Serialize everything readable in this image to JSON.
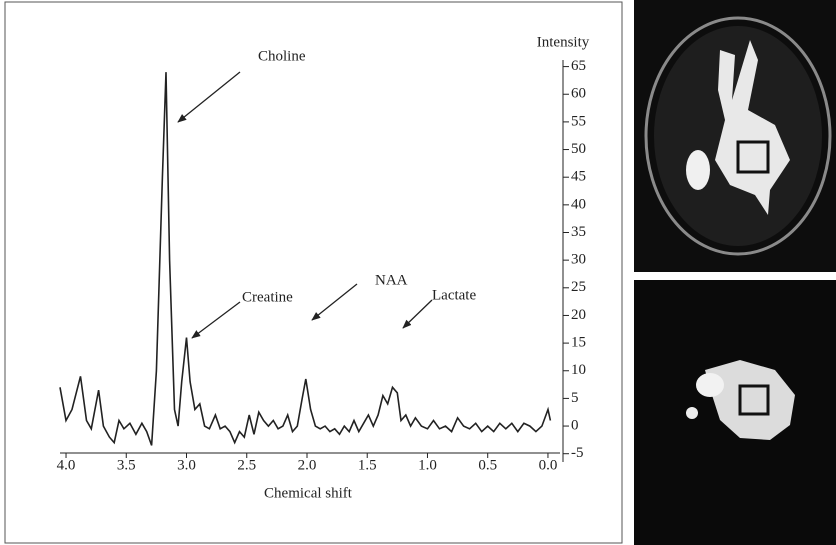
{
  "chart_data": {
    "type": "line",
    "x_label": "Chemical shift",
    "y_label": "Intensity",
    "annotations": [
      "Choline",
      "Creatine",
      "NAA",
      "Lactate"
    ],
    "color": "#222222",
    "x": [
      4.05,
      4.0,
      3.95,
      3.88,
      3.83,
      3.79,
      3.73,
      3.69,
      3.64,
      3.6,
      3.56,
      3.52,
      3.47,
      3.42,
      3.37,
      3.33,
      3.29,
      3.25,
      3.2,
      3.17,
      3.14,
      3.1,
      3.07,
      3.04,
      3.0,
      2.97,
      2.93,
      2.89,
      2.85,
      2.81,
      2.76,
      2.72,
      2.68,
      2.64,
      2.6,
      2.56,
      2.52,
      2.48,
      2.44,
      2.4,
      2.36,
      2.32,
      2.28,
      2.24,
      2.2,
      2.16,
      2.12,
      2.08,
      2.04,
      2.01,
      1.97,
      1.93,
      1.89,
      1.85,
      1.81,
      1.77,
      1.73,
      1.69,
      1.65,
      1.61,
      1.57,
      1.53,
      1.49,
      1.45,
      1.41,
      1.37,
      1.33,
      1.29,
      1.25,
      1.22,
      1.18,
      1.14,
      1.1,
      1.05,
      1.0,
      0.95,
      0.9,
      0.85,
      0.8,
      0.75,
      0.7,
      0.65,
      0.6,
      0.55,
      0.5,
      0.45,
      0.4,
      0.35,
      0.3,
      0.25,
      0.2,
      0.15,
      0.1,
      0.05,
      0.0,
      -0.02
    ],
    "values": [
      7,
      1,
      3,
      9,
      1,
      -0.5,
      6.5,
      0,
      -2,
      -3,
      1,
      -0.5,
      0.5,
      -1.5,
      0.5,
      -1,
      -3.5,
      10,
      45,
      64,
      30,
      3,
      0,
      8,
      16,
      8,
      3,
      4,
      0,
      -0.5,
      2,
      -0.5,
      0,
      -1,
      -3,
      -1,
      -2,
      2,
      -1.5,
      2.5,
      1,
      0,
      1,
      -0.5,
      0,
      2,
      -1,
      0,
      5,
      8.5,
      3,
      0,
      -0.5,
      0,
      -1,
      -0.5,
      -1.5,
      0,
      -1,
      1,
      -1,
      0.5,
      2,
      0,
      2,
      5.5,
      4,
      7,
      6,
      1,
      2,
      0,
      1.5,
      0,
      -0.5,
      1,
      -0.5,
      0,
      -1,
      1.5,
      0,
      -0.5,
      0.5,
      -1,
      0,
      -1,
      0.5,
      -0.5,
      0.5,
      -1,
      0.5,
      0,
      -1,
      0,
      3,
      1
    ],
    "xlim": [
      4.05,
      -0.1
    ],
    "xticks": [
      {
        "value": 4,
        "label": "4.0"
      },
      3.5,
      {
        "value": 3,
        "label": "3.0"
      },
      2.5,
      {
        "value": 2,
        "label": "2.0"
      },
      1.5,
      {
        "value": 1,
        "label": "1.0"
      },
      0.5,
      {
        "value": 0,
        "label": "0.0"
      }
    ],
    "ylim": [
      -6.5,
      68
    ],
    "yticks": [
      -5,
      0,
      5,
      10,
      15,
      20,
      25,
      30,
      35,
      40,
      45,
      50,
      55,
      60,
      65
    ],
    "grid": false
  }
}
